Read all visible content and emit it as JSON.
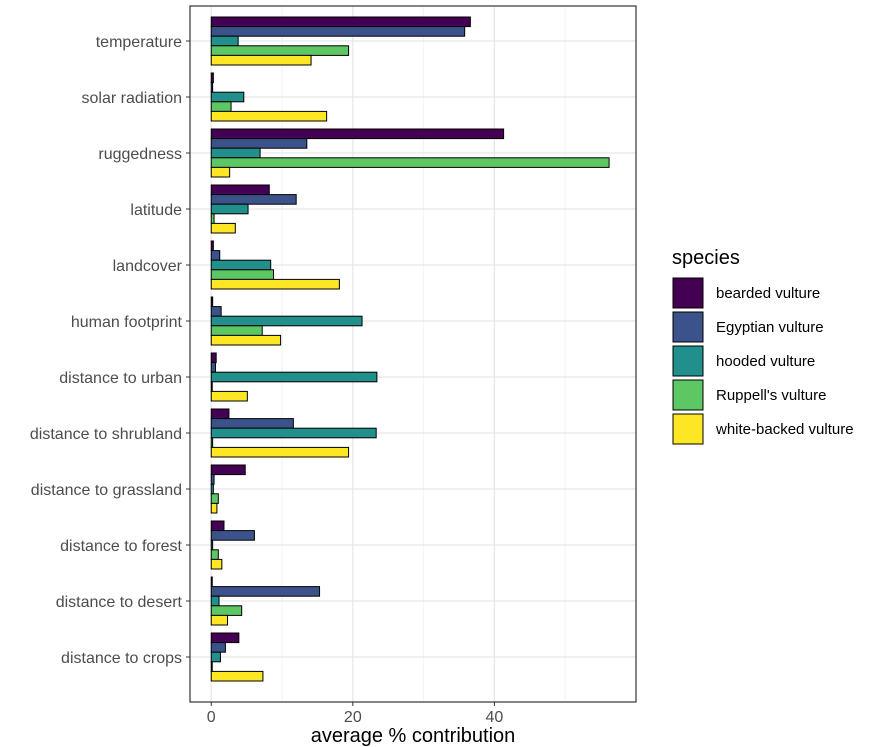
{
  "chart_data": {
    "type": "bar",
    "orientation": "horizontal",
    "title": "",
    "xlabel": "average % contribution",
    "ylabel": "",
    "xlim": [
      -3,
      60
    ],
    "xticks": [
      0,
      20,
      40
    ],
    "grid": true,
    "legend_position": "right",
    "legend_title": "species",
    "categories": [
      "temperature",
      "solar radiation",
      "ruggedness",
      "latitude",
      "landcover",
      "human footprint",
      "distance to urban",
      "distance to shrubland",
      "distance to grassland",
      "distance to forest",
      "distance to desert",
      "distance to crops"
    ],
    "series": [
      {
        "name": "bearded vulture",
        "color": "#440154",
        "values": [
          36.6,
          0.3,
          41.3,
          8.2,
          0.3,
          0.2,
          0.7,
          2.5,
          4.8,
          1.8,
          0.1,
          3.9
        ]
      },
      {
        "name": "Egyptian vulture",
        "color": "#3B528B",
        "values": [
          35.8,
          0.2,
          13.5,
          12.0,
          1.2,
          1.4,
          0.6,
          11.6,
          0.4,
          6.1,
          15.3,
          2.0
        ]
      },
      {
        "name": "hooded vulture",
        "color": "#21908C",
        "values": [
          3.8,
          4.6,
          6.9,
          5.2,
          8.4,
          21.3,
          23.4,
          23.3,
          0.3,
          0.2,
          1.1,
          1.3
        ]
      },
      {
        "name": "Ruppell's vulture",
        "color": "#5DC863",
        "values": [
          19.4,
          2.8,
          56.2,
          0.4,
          8.8,
          7.2,
          0.1,
          0.2,
          1.0,
          1.0,
          4.3,
          0.1
        ]
      },
      {
        "name": "white-backed vulture",
        "color": "#FDE725",
        "values": [
          14.1,
          16.3,
          2.6,
          3.4,
          18.1,
          9.8,
          5.1,
          19.4,
          0.8,
          1.5,
          2.3,
          7.3
        ]
      }
    ]
  }
}
